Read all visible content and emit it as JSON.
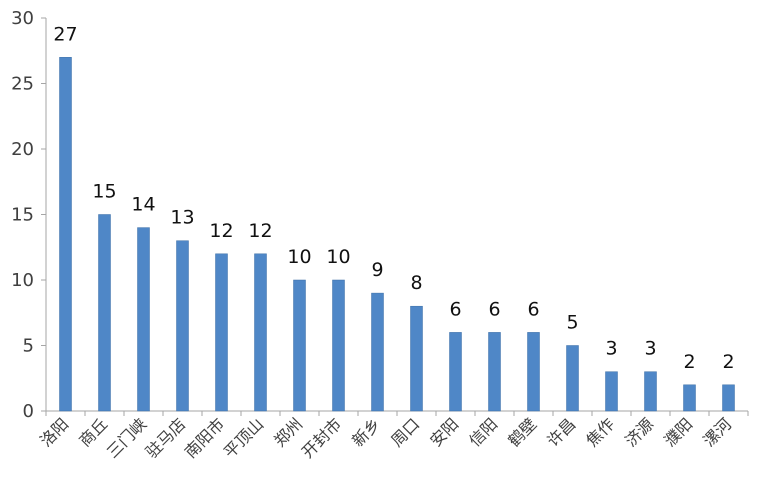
{
  "chart_data": {
    "type": "bar",
    "title": "",
    "xlabel": "",
    "ylabel": "",
    "ylim": [
      0,
      30
    ],
    "yticks": [
      0,
      5,
      10,
      15,
      20,
      25,
      30
    ],
    "grid": false,
    "legend": "none",
    "bar_color": "#4f87c7",
    "categories": [
      "洛阳",
      "商丘",
      "三门峡",
      "驻马店",
      "南阳市",
      "平顶山",
      "郑州",
      "开封市",
      "新乡",
      "周口",
      "安阳",
      "信阳",
      "鹤壁",
      "许昌",
      "焦作",
      "济源",
      "濮阳",
      "漯河"
    ],
    "values": [
      27,
      15,
      14,
      13,
      12,
      12,
      10,
      10,
      9,
      8,
      6,
      6,
      6,
      5,
      3,
      3,
      2,
      2
    ]
  }
}
